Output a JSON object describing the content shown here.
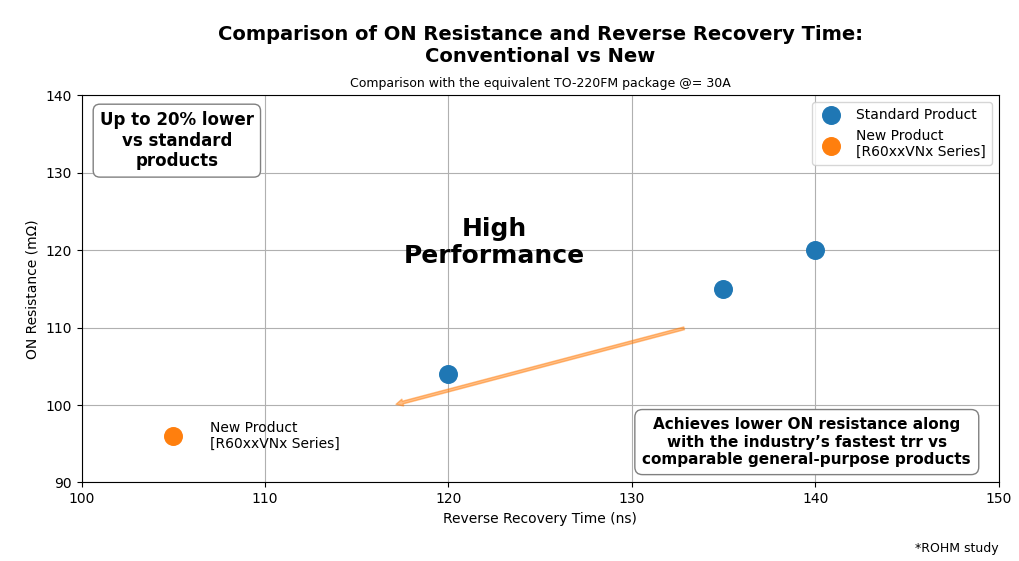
{
  "chart_data": {
    "type": "scatter",
    "title": "Comparison of ON Resistance and Reverse Recovery Time:\nConventional vs New",
    "subtitle": "Comparison with the equivalent TO-220FM package @= 30A",
    "x_label": "Reverse Recovery Time (ns)",
    "y_label": "ON Resistance (mΩ)",
    "xlim": [
      100,
      150
    ],
    "ylim": [
      90,
      140
    ],
    "xticks": [
      100,
      110,
      120,
      130,
      140,
      150
    ],
    "yticks": [
      90,
      100,
      110,
      120,
      130,
      140
    ],
    "grid": true,
    "legend": "upper right",
    "series": [
      {
        "name": "Standard Product",
        "x": [
          120,
          135,
          140
        ],
        "values": [
          104,
          115,
          120
        ]
      },
      {
        "name": "New Product\n[R60xxVNx Series]",
        "x": [
          105
        ],
        "values": [
          96
        ]
      }
    ],
    "annotations": [
      "High\nPerformance",
      "Up to 20% lower\nvs standard\nproducts",
      "New Product\n[R60xxVNx Series]",
      "Achieves lower ON resistance along\nwith the industry’s fastest trr vs\ncomparable general-purpose products"
    ],
    "note": "*ROHM study"
  }
}
